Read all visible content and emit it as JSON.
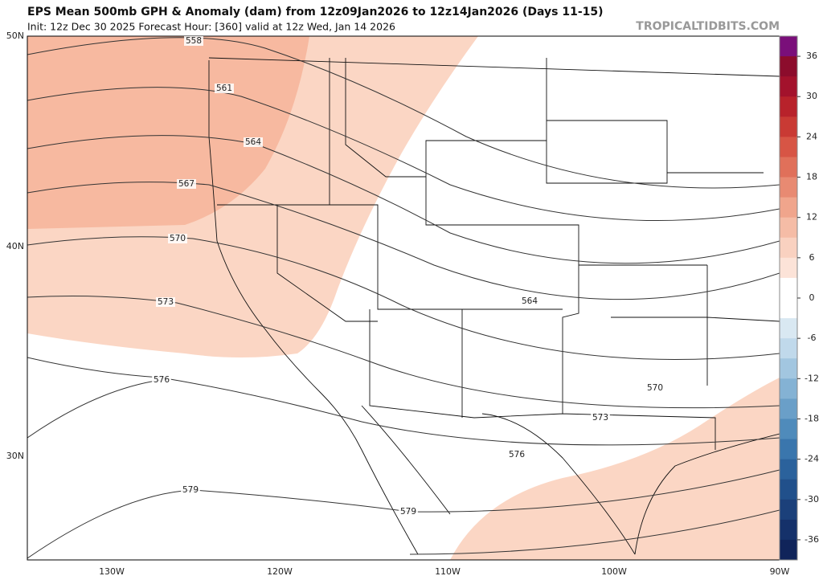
{
  "header": {
    "title": "EPS Mean 500mb GPH & Anomaly (dam) from 12z09Jan2026 to 12z14Jan2026 (Days 11-15)",
    "subtitle": "Init: 12z Dec 30 2025   Forecast Hour: [360]   valid at 12z Wed, Jan 14 2026",
    "site": "TROPICALTIDBITS.COM"
  },
  "map": {
    "lat_labels": [
      "50N",
      "40N",
      "30N"
    ],
    "lon_labels": [
      "130W",
      "120W",
      "110W",
      "100W",
      "90W"
    ],
    "contour_labels": [
      "558",
      "561",
      "564",
      "567",
      "570",
      "573",
      "576",
      "579",
      "564",
      "570",
      "573",
      "576",
      "579"
    ]
  },
  "colorbar": {
    "labels": [
      "36",
      "30",
      "24",
      "18",
      "12",
      "6",
      "0",
      "-6",
      "-12",
      "-18",
      "-24",
      "-30",
      "-36"
    ]
  }
}
